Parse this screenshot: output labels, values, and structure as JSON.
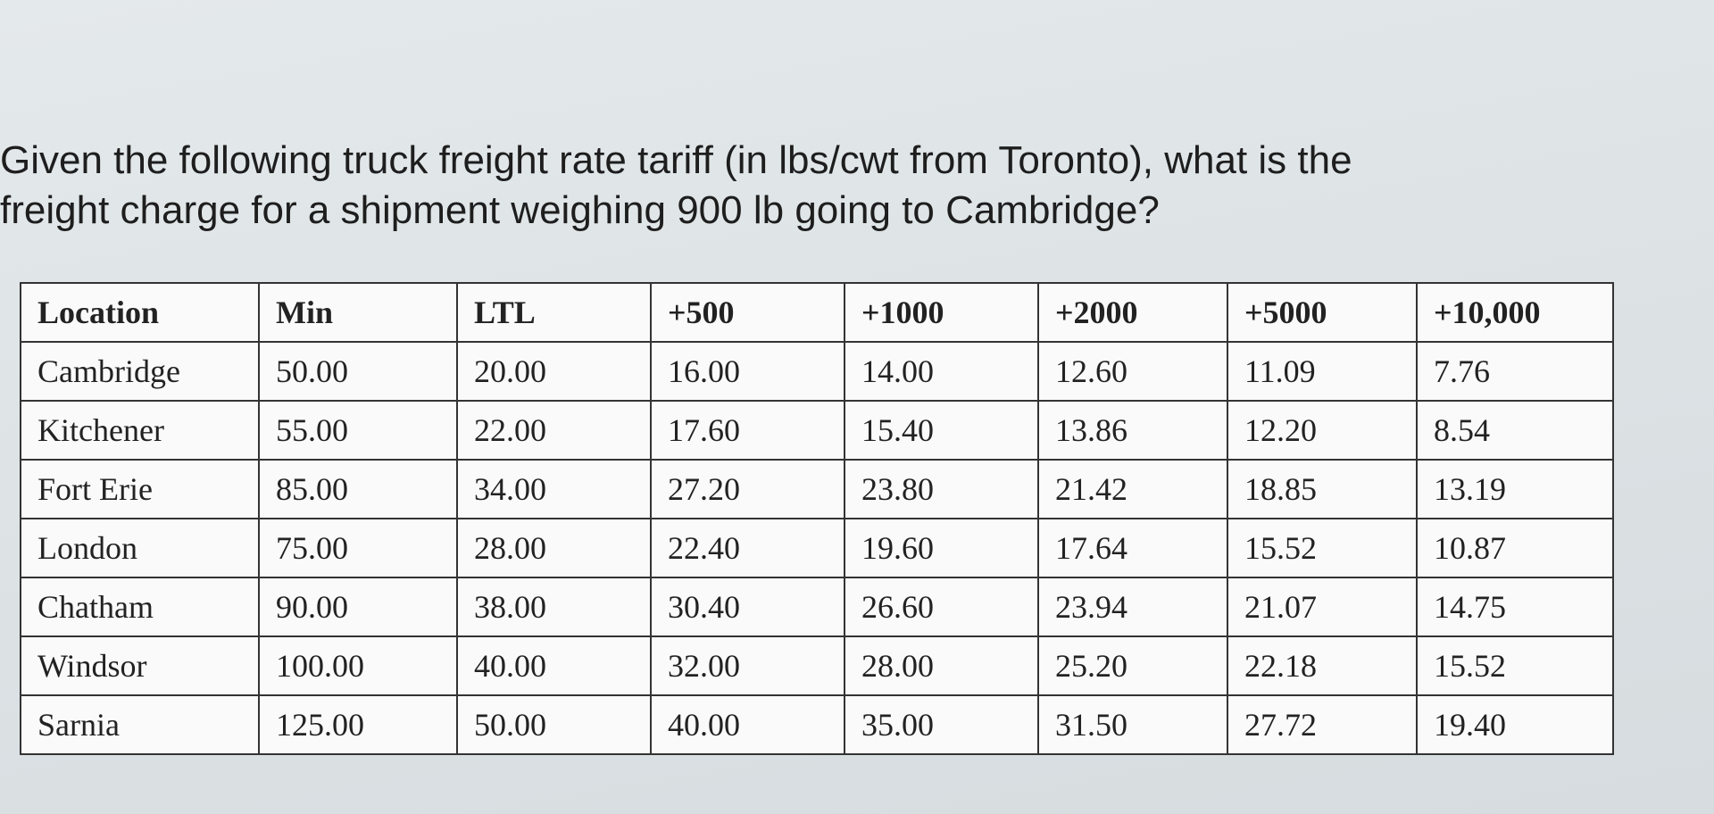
{
  "question": {
    "line1": "Given the following truck freight rate tariff (in lbs/cwt from Toronto), what is the",
    "line2": "freight charge for a shipment weighing 900 lb going to Cambridge?"
  },
  "table": {
    "header": [
      "Location",
      "Min",
      "LTL",
      "+500",
      "+1000",
      "+2000",
      "+5000",
      "+10,000"
    ],
    "rows": [
      [
        "Cambridge",
        "50.00",
        "20.00",
        "16.00",
        "14.00",
        "12.60",
        "11.09",
        "7.76"
      ],
      [
        "Kitchener",
        "55.00",
        "22.00",
        "17.60",
        "15.40",
        "13.86",
        "12.20",
        "8.54"
      ],
      [
        "Fort Erie",
        "85.00",
        "34.00",
        "27.20",
        "23.80",
        "21.42",
        "18.85",
        "13.19"
      ],
      [
        "London",
        "75.00",
        "28.00",
        "22.40",
        "19.60",
        "17.64",
        "15.52",
        "10.87"
      ],
      [
        "Chatham",
        "90.00",
        "38.00",
        "30.40",
        "26.60",
        "23.94",
        "21.07",
        "14.75"
      ],
      [
        "Windsor",
        "100.00",
        "40.00",
        "32.00",
        "28.00",
        "25.20",
        "22.18",
        "15.52"
      ],
      [
        "Sarnia",
        "125.00",
        "50.00",
        "40.00",
        "35.00",
        "31.50",
        "27.72",
        "19.40"
      ]
    ]
  }
}
